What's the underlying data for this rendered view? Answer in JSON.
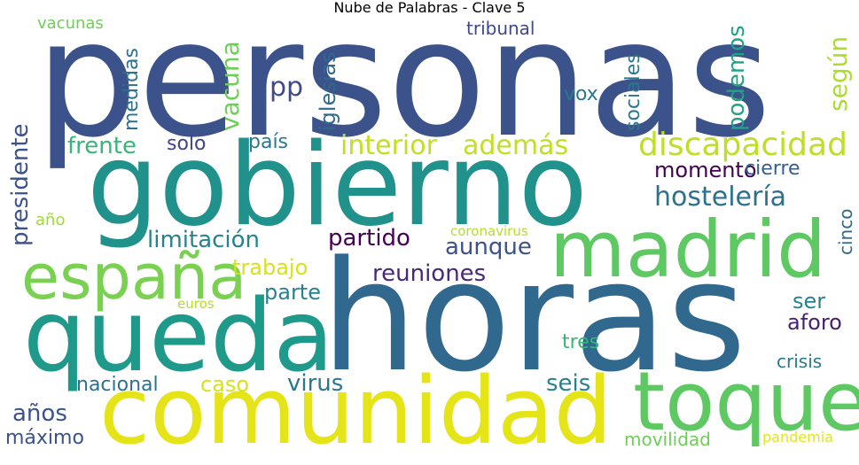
{
  "title": "Nube de Palabras - Clave 5",
  "words": [
    {
      "text": "personas",
      "color": "#3b528b"
    },
    {
      "text": "gobierno",
      "color": "#21918c"
    },
    {
      "text": "horas",
      "color": "#31688e"
    },
    {
      "text": "comunidad",
      "color": "#e5e419"
    },
    {
      "text": "queda",
      "color": "#1f9a8a"
    },
    {
      "text": "madrid",
      "color": "#5ec962"
    },
    {
      "text": "toque",
      "color": "#5ec962"
    },
    {
      "text": "españa",
      "color": "#7ad151"
    },
    {
      "text": "discapacidad",
      "color": "#bddf26"
    },
    {
      "text": "hostelería",
      "color": "#2c728e"
    },
    {
      "text": "interior",
      "color": "#c2df23"
    },
    {
      "text": "además",
      "color": "#c2df23"
    },
    {
      "text": "frente",
      "color": "#35b779"
    },
    {
      "text": "limitación",
      "color": "#26828e"
    },
    {
      "text": "partido",
      "color": "#440154"
    },
    {
      "text": "aunque",
      "color": "#3b528b"
    },
    {
      "text": "reuniones",
      "color": "#482878"
    },
    {
      "text": "trabajo",
      "color": "#d8e219"
    },
    {
      "text": "parte",
      "color": "#26828e"
    },
    {
      "text": "momento",
      "color": "#440154"
    },
    {
      "text": "cierre",
      "color": "#355f8d"
    },
    {
      "text": "solo",
      "color": "#414487"
    },
    {
      "text": "país",
      "color": "#2a788e"
    },
    {
      "text": "pp",
      "color": "#3e4989"
    },
    {
      "text": "vox",
      "color": "#2a788e"
    },
    {
      "text": "ser",
      "color": "#26828e"
    },
    {
      "text": "aforo",
      "color": "#481f70"
    },
    {
      "text": "tres",
      "color": "#35b779"
    },
    {
      "text": "crisis",
      "color": "#2a788e"
    },
    {
      "text": "seis",
      "color": "#26828e"
    },
    {
      "text": "virus",
      "color": "#2a788e"
    },
    {
      "text": "caso",
      "color": "#d8e219"
    },
    {
      "text": "nacional",
      "color": "#2c728e"
    },
    {
      "text": "años",
      "color": "#3b528b"
    },
    {
      "text": "máximo",
      "color": "#3b528b"
    },
    {
      "text": "movilidad",
      "color": "#6ece58"
    },
    {
      "text": "pandemia",
      "color": "#e5e419"
    },
    {
      "text": "euros",
      "color": "#b5de2b"
    },
    {
      "text": "coronavirus",
      "color": "#b5de2b"
    },
    {
      "text": "año",
      "color": "#a0da39"
    },
    {
      "text": "vacunas",
      "color": "#6ece58"
    },
    {
      "text": "tribunal",
      "color": "#3e4989"
    },
    {
      "text": "presidente",
      "color": "#3b528b"
    },
    {
      "text": "medidas",
      "color": "#2c728e"
    },
    {
      "text": "vacuna",
      "color": "#6ece58"
    },
    {
      "text": "iglesias",
      "color": "#31688e"
    },
    {
      "text": "sociales",
      "color": "#2a788e"
    },
    {
      "text": "podemos",
      "color": "#20a486"
    },
    {
      "text": "según",
      "color": "#addc30"
    },
    {
      "text": "cinco",
      "color": "#30697e"
    }
  ]
}
